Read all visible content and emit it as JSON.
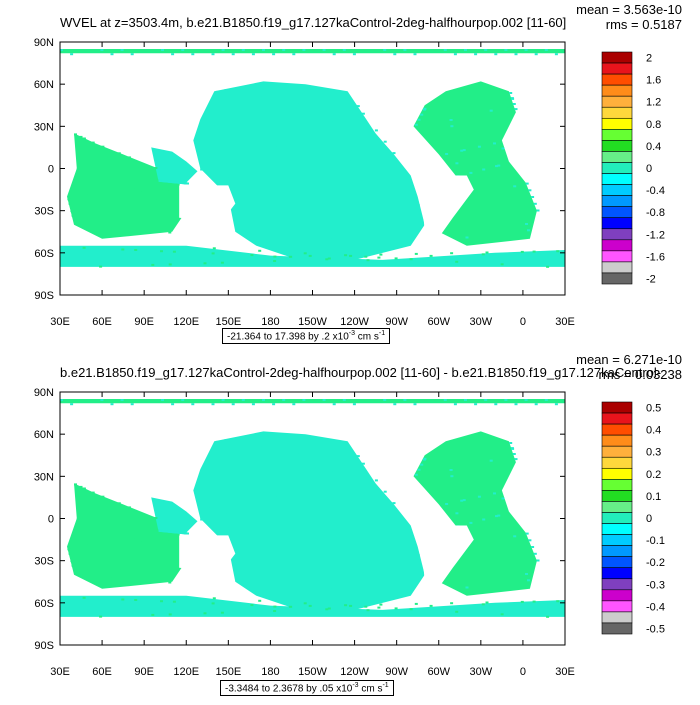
{
  "panels": [
    {
      "title": "WVEL at z=3503.4m, b.e21.B1850.f19_g17.127kaControl-2deg-halfhourpop.002 [11-60]",
      "stats": {
        "mean": "mean = 3.563e-10",
        "rms": "rms = 0.5187"
      },
      "range_text": "-21.364 to 17.398 by .2 x10",
      "range_exp": "-3",
      "range_unit": " cm s",
      "range_unit_exp": "-1",
      "colorbar": {
        "labels": [
          "2",
          "1.6",
          "1.2",
          "0.8",
          "0.4",
          "0",
          "-0.4",
          "-0.8",
          "-1.2",
          "-1.6",
          "-2"
        ],
        "colors": [
          "#aa0000",
          "#e8141c",
          "#ff4d00",
          "#ff8c1a",
          "#ffb03c",
          "#ffd83c",
          "#ffff00",
          "#66ff33",
          "#22dd22",
          "#66ee88",
          "#22eebb",
          "#00ffff",
          "#00ccff",
          "#0099ff",
          "#0055ff",
          "#0000ff",
          "#7f3fbf",
          "#cc00cc",
          "#ff55ff",
          "#cccccc",
          "#666666"
        ]
      }
    },
    {
      "title": "b.e21.B1850.f19_g17.127kaControl-2deg-halfhourpop.002 [11-60] - b.e21.B1850.f19_g17.127kaControl-",
      "stats": {
        "mean": "mean = 6.271e-10",
        "rms": "rms = 0.03238"
      },
      "range_text": "-3.3484 to 2.3678 by .05 x10",
      "range_exp": "-3",
      "range_unit": " cm s",
      "range_unit_exp": "-1",
      "colorbar": {
        "labels": [
          "0.5",
          "0.4",
          "0.3",
          "0.2",
          "0.1",
          "0",
          "-0.1",
          "-0.2",
          "-0.3",
          "-0.4",
          "-0.5"
        ],
        "colors": [
          "#aa0000",
          "#e8141c",
          "#ff4d00",
          "#ff8c1a",
          "#ffb03c",
          "#ffd83c",
          "#ffff00",
          "#66ff33",
          "#22dd22",
          "#66ee88",
          "#22eebb",
          "#00ffff",
          "#00ccff",
          "#0099ff",
          "#0055ff",
          "#0000ff",
          "#7f3fbf",
          "#cc00cc",
          "#ff55ff",
          "#cccccc",
          "#666666"
        ]
      }
    }
  ],
  "lat_labels": [
    "90N",
    "60N",
    "30N",
    "0",
    "30S",
    "60S",
    "90S"
  ],
  "lon_labels": [
    "30E",
    "60E",
    "90E",
    "120E",
    "150E",
    "180",
    "150W",
    "120W",
    "90W",
    "60W",
    "30W",
    "0",
    "30E"
  ],
  "map_colors": {
    "ocean_main": "#22ee88",
    "ocean_alt": "#22eecc",
    "land": "#ffffff"
  }
}
